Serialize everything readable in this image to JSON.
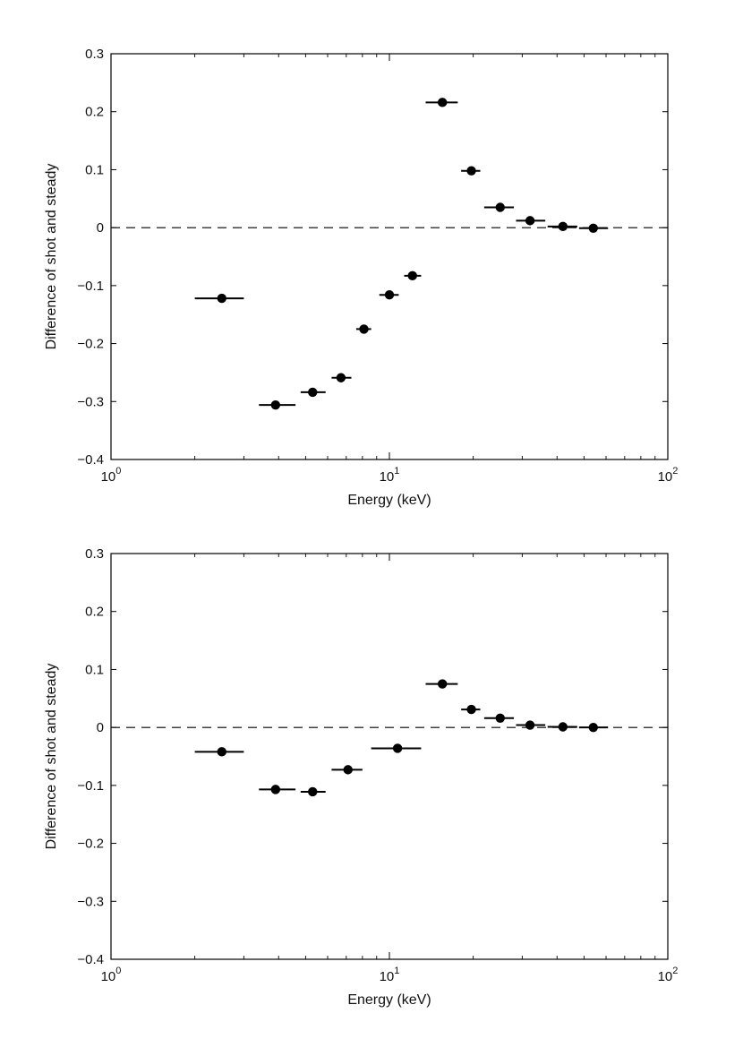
{
  "chart_data": [
    {
      "type": "scatter",
      "xlabel": "Energy (keV)",
      "ylabel": "Difference of shot and steady",
      "xscale": "log",
      "xlim": [
        1,
        100
      ],
      "ylim": [
        -0.4,
        0.3
      ],
      "xticks": [
        {
          "value": 1,
          "base": "10",
          "exp": "0"
        },
        {
          "value": 10,
          "base": "10",
          "exp": "1"
        },
        {
          "value": 100,
          "base": "10",
          "exp": "2"
        }
      ],
      "yticks": [
        {
          "value": 0.3,
          "label": "0.3"
        },
        {
          "value": 0.2,
          "label": "0.2"
        },
        {
          "value": 0.1,
          "label": "0.1"
        },
        {
          "value": 0,
          "label": "0"
        },
        {
          "value": -0.1,
          "label": "-0.1"
        },
        {
          "value": -0.2,
          "label": "-0.2"
        },
        {
          "value": -0.3,
          "label": "-0.3"
        },
        {
          "value": -0.4,
          "label": "-0.4"
        }
      ],
      "reference_line": {
        "y": 0,
        "style": "dashed"
      },
      "grid": false,
      "points": [
        {
          "x": 2.5,
          "x_low": 2.0,
          "x_high": 3.0,
          "y": -0.122
        },
        {
          "x": 3.9,
          "x_low": 3.4,
          "x_high": 4.6,
          "y": -0.306
        },
        {
          "x": 5.3,
          "x_low": 4.8,
          "x_high": 5.9,
          "y": -0.284
        },
        {
          "x": 6.7,
          "x_low": 6.2,
          "x_high": 7.3,
          "y": -0.259
        },
        {
          "x": 8.1,
          "x_low": 7.6,
          "x_high": 8.6,
          "y": -0.175
        },
        {
          "x": 10.0,
          "x_low": 9.2,
          "x_high": 10.8,
          "y": -0.116
        },
        {
          "x": 12.1,
          "x_low": 11.3,
          "x_high": 13.0,
          "y": -0.083
        },
        {
          "x": 15.5,
          "x_low": 13.5,
          "x_high": 17.6,
          "y": 0.216
        },
        {
          "x": 19.7,
          "x_low": 18.1,
          "x_high": 21.2,
          "y": 0.098
        },
        {
          "x": 25.0,
          "x_low": 21.9,
          "x_high": 28.0,
          "y": 0.035
        },
        {
          "x": 32.0,
          "x_low": 28.5,
          "x_high": 36.3,
          "y": 0.012
        },
        {
          "x": 42.0,
          "x_low": 37.0,
          "x_high": 47.3,
          "y": 0.002
        },
        {
          "x": 54.0,
          "x_low": 48.0,
          "x_high": 61.0,
          "y": -0.001
        }
      ]
    },
    {
      "type": "scatter",
      "xlabel": "Energy (keV)",
      "ylabel": "Difference of shot and steady",
      "xscale": "log",
      "xlim": [
        1,
        100
      ],
      "ylim": [
        -0.4,
        0.3
      ],
      "xticks": [
        {
          "value": 1,
          "base": "10",
          "exp": "0"
        },
        {
          "value": 10,
          "base": "10",
          "exp": "1"
        },
        {
          "value": 100,
          "base": "10",
          "exp": "2"
        }
      ],
      "yticks": [
        {
          "value": 0.3,
          "label": "0.3"
        },
        {
          "value": 0.2,
          "label": "0.2"
        },
        {
          "value": 0.1,
          "label": "0.1"
        },
        {
          "value": 0,
          "label": "0"
        },
        {
          "value": -0.1,
          "label": "-0.1"
        },
        {
          "value": -0.2,
          "label": "-0.2"
        },
        {
          "value": -0.3,
          "label": "-0.3"
        },
        {
          "value": -0.4,
          "label": "-0.4"
        }
      ],
      "reference_line": {
        "y": 0,
        "style": "dashed"
      },
      "grid": false,
      "points": [
        {
          "x": 2.5,
          "x_low": 2.0,
          "x_high": 3.0,
          "y": -0.042
        },
        {
          "x": 3.9,
          "x_low": 3.4,
          "x_high": 4.6,
          "y": -0.107
        },
        {
          "x": 5.3,
          "x_low": 4.8,
          "x_high": 5.9,
          "y": -0.111
        },
        {
          "x": 7.1,
          "x_low": 6.2,
          "x_high": 8.0,
          "y": -0.073
        },
        {
          "x": 10.7,
          "x_low": 8.6,
          "x_high": 13.0,
          "y": -0.036
        },
        {
          "x": 15.5,
          "x_low": 13.5,
          "x_high": 17.6,
          "y": 0.075
        },
        {
          "x": 19.7,
          "x_low": 18.1,
          "x_high": 21.2,
          "y": 0.031
        },
        {
          "x": 25.0,
          "x_low": 21.9,
          "x_high": 28.0,
          "y": 0.016
        },
        {
          "x": 32.0,
          "x_low": 28.5,
          "x_high": 36.3,
          "y": 0.004
        },
        {
          "x": 42.0,
          "x_low": 37.0,
          "x_high": 47.3,
          "y": 0.001
        },
        {
          "x": 54.0,
          "x_low": 48.0,
          "x_high": 61.0,
          "y": 0.0
        }
      ]
    }
  ]
}
